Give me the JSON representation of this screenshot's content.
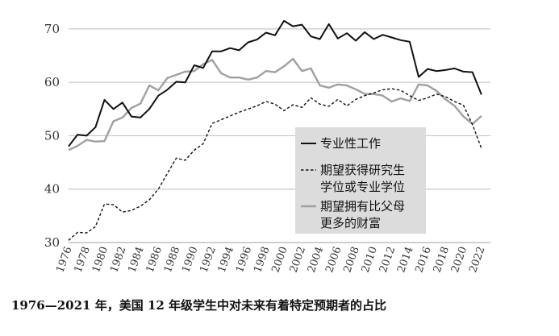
{
  "chart_data": {
    "type": "line",
    "x": [
      1976,
      1977,
      1978,
      1979,
      1980,
      1981,
      1982,
      1983,
      1984,
      1985,
      1986,
      1987,
      1988,
      1989,
      1990,
      1991,
      1992,
      1993,
      1994,
      1995,
      1996,
      1997,
      1998,
      1999,
      2000,
      2001,
      2002,
      2003,
      2004,
      2005,
      2006,
      2007,
      2008,
      2009,
      2010,
      2011,
      2012,
      2013,
      2014,
      2015,
      2016,
      2017,
      2018,
      2019,
      2020,
      2021,
      2022
    ],
    "x_tick_labels": [
      "1976",
      "1978",
      "1980",
      "1982",
      "1984",
      "1986",
      "1988",
      "1990",
      "1992",
      "1994",
      "1996",
      "1998",
      "2000",
      "2002",
      "2004",
      "2006",
      "2008",
      "2010",
      "2012",
      "2014",
      "2016",
      "2018",
      "2020",
      "2022"
    ],
    "xlim": [
      1976,
      2023
    ],
    "ylim": [
      30,
      73
    ],
    "y_ticks": [
      30,
      40,
      50,
      60,
      70
    ],
    "grid": "horizontal",
    "legend_position": "center-right",
    "series": [
      {
        "name": "专业性工作",
        "style": "solid",
        "color": "#111111",
        "values": [
          48.0,
          50.2,
          50.0,
          51.6,
          56.7,
          55.0,
          56.2,
          53.6,
          53.4,
          55.0,
          57.5,
          58.6,
          60.1,
          60.0,
          63.2,
          62.7,
          65.8,
          65.8,
          66.4,
          66.0,
          67.5,
          68.0,
          69.3,
          68.8,
          71.5,
          70.5,
          70.8,
          68.6,
          68.1,
          70.9,
          68.2,
          69.2,
          67.8,
          69.4,
          68.1,
          68.9,
          68.4,
          67.9,
          67.6,
          61.0,
          62.5,
          62.1,
          62.3,
          62.6,
          62.0,
          61.9,
          57.7
        ]
      },
      {
        "name": "期望获得研究生学位或专业学位",
        "style": "dashed",
        "color": "#111111",
        "values": [
          30.4,
          31.9,
          31.8,
          33.0,
          37.2,
          37.1,
          35.7,
          36.0,
          36.8,
          38.0,
          40.0,
          42.9,
          45.8,
          45.4,
          47.3,
          48.5,
          52.3,
          53.0,
          53.7,
          54.4,
          55.0,
          55.6,
          56.4,
          55.9,
          54.7,
          55.8,
          55.3,
          57.1,
          55.9,
          55.5,
          56.8,
          55.6,
          56.8,
          57.5,
          58.0,
          58.6,
          58.8,
          58.5,
          57.5,
          56.6,
          57.1,
          57.8,
          57.3,
          56.4,
          55.7,
          52.1,
          47.6
        ]
      },
      {
        "name": "期望拥有比父母更多的财富",
        "style": "solid",
        "color": "#a0a0a0",
        "values": [
          47.3,
          48.1,
          49.2,
          48.9,
          49.0,
          52.7,
          53.4,
          55.2,
          56.0,
          59.4,
          58.5,
          60.8,
          61.4,
          62.0,
          62.1,
          63.4,
          64.2,
          61.7,
          60.9,
          60.9,
          60.5,
          60.9,
          62.1,
          61.9,
          63.0,
          64.4,
          62.1,
          62.6,
          59.4,
          59.0,
          59.6,
          59.4,
          58.7,
          57.8,
          57.8,
          57.5,
          56.4,
          57.0,
          56.5,
          59.6,
          59.4,
          58.4,
          56.8,
          55.6,
          53.6,
          52.2,
          53.7
        ]
      }
    ],
    "legend": [
      "专业性工作",
      "期望获得研究生学位或专业学位",
      "期望拥有比父母更多的财富"
    ],
    "title": "1976—2021 年，美国 12 年级学生中对未来有着特定预期者的占比",
    "xlabel": "",
    "ylabel": ""
  },
  "legend_lines": [
    [
      "专业性工作"
    ],
    [
      "期望获得研究生",
      "学位或专业学位"
    ],
    [
      "期望拥有比父母",
      "更多的财富"
    ]
  ],
  "caption": "1976—2021 年，美国 12 年级学生中对未来有着特定预期者的占比"
}
